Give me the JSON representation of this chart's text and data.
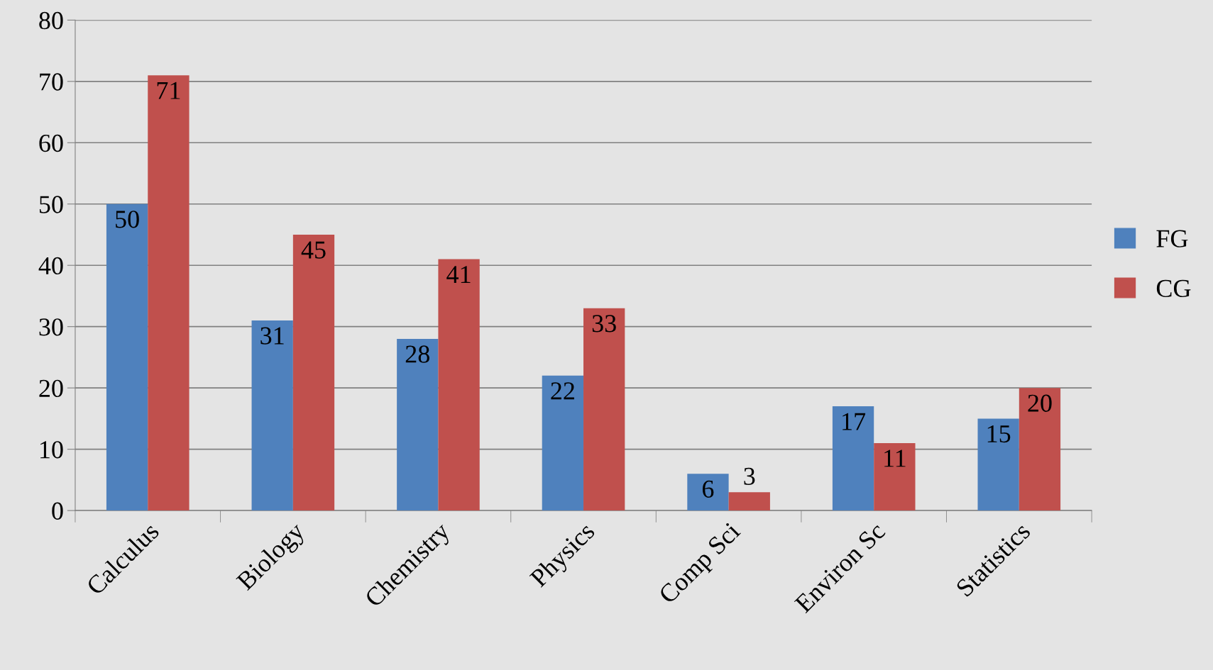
{
  "chart_data": {
    "type": "bar",
    "categories": [
      "Calculus",
      "Biology",
      "Chemistry",
      "Physics",
      "Comp Sci",
      "Environ Sc",
      "Statistics"
    ],
    "series": [
      {
        "name": "FG",
        "color": "#4f81bd",
        "values": [
          50,
          31,
          28,
          22,
          6,
          17,
          15
        ]
      },
      {
        "name": "CG",
        "color": "#c0504d",
        "values": [
          71,
          45,
          41,
          33,
          3,
          11,
          20
        ]
      }
    ],
    "ylim": [
      0,
      80
    ],
    "yticks": [
      0,
      10,
      20,
      30,
      40,
      50,
      60,
      70,
      80
    ],
    "grid": "y",
    "legend": "right",
    "data_labels": true
  }
}
